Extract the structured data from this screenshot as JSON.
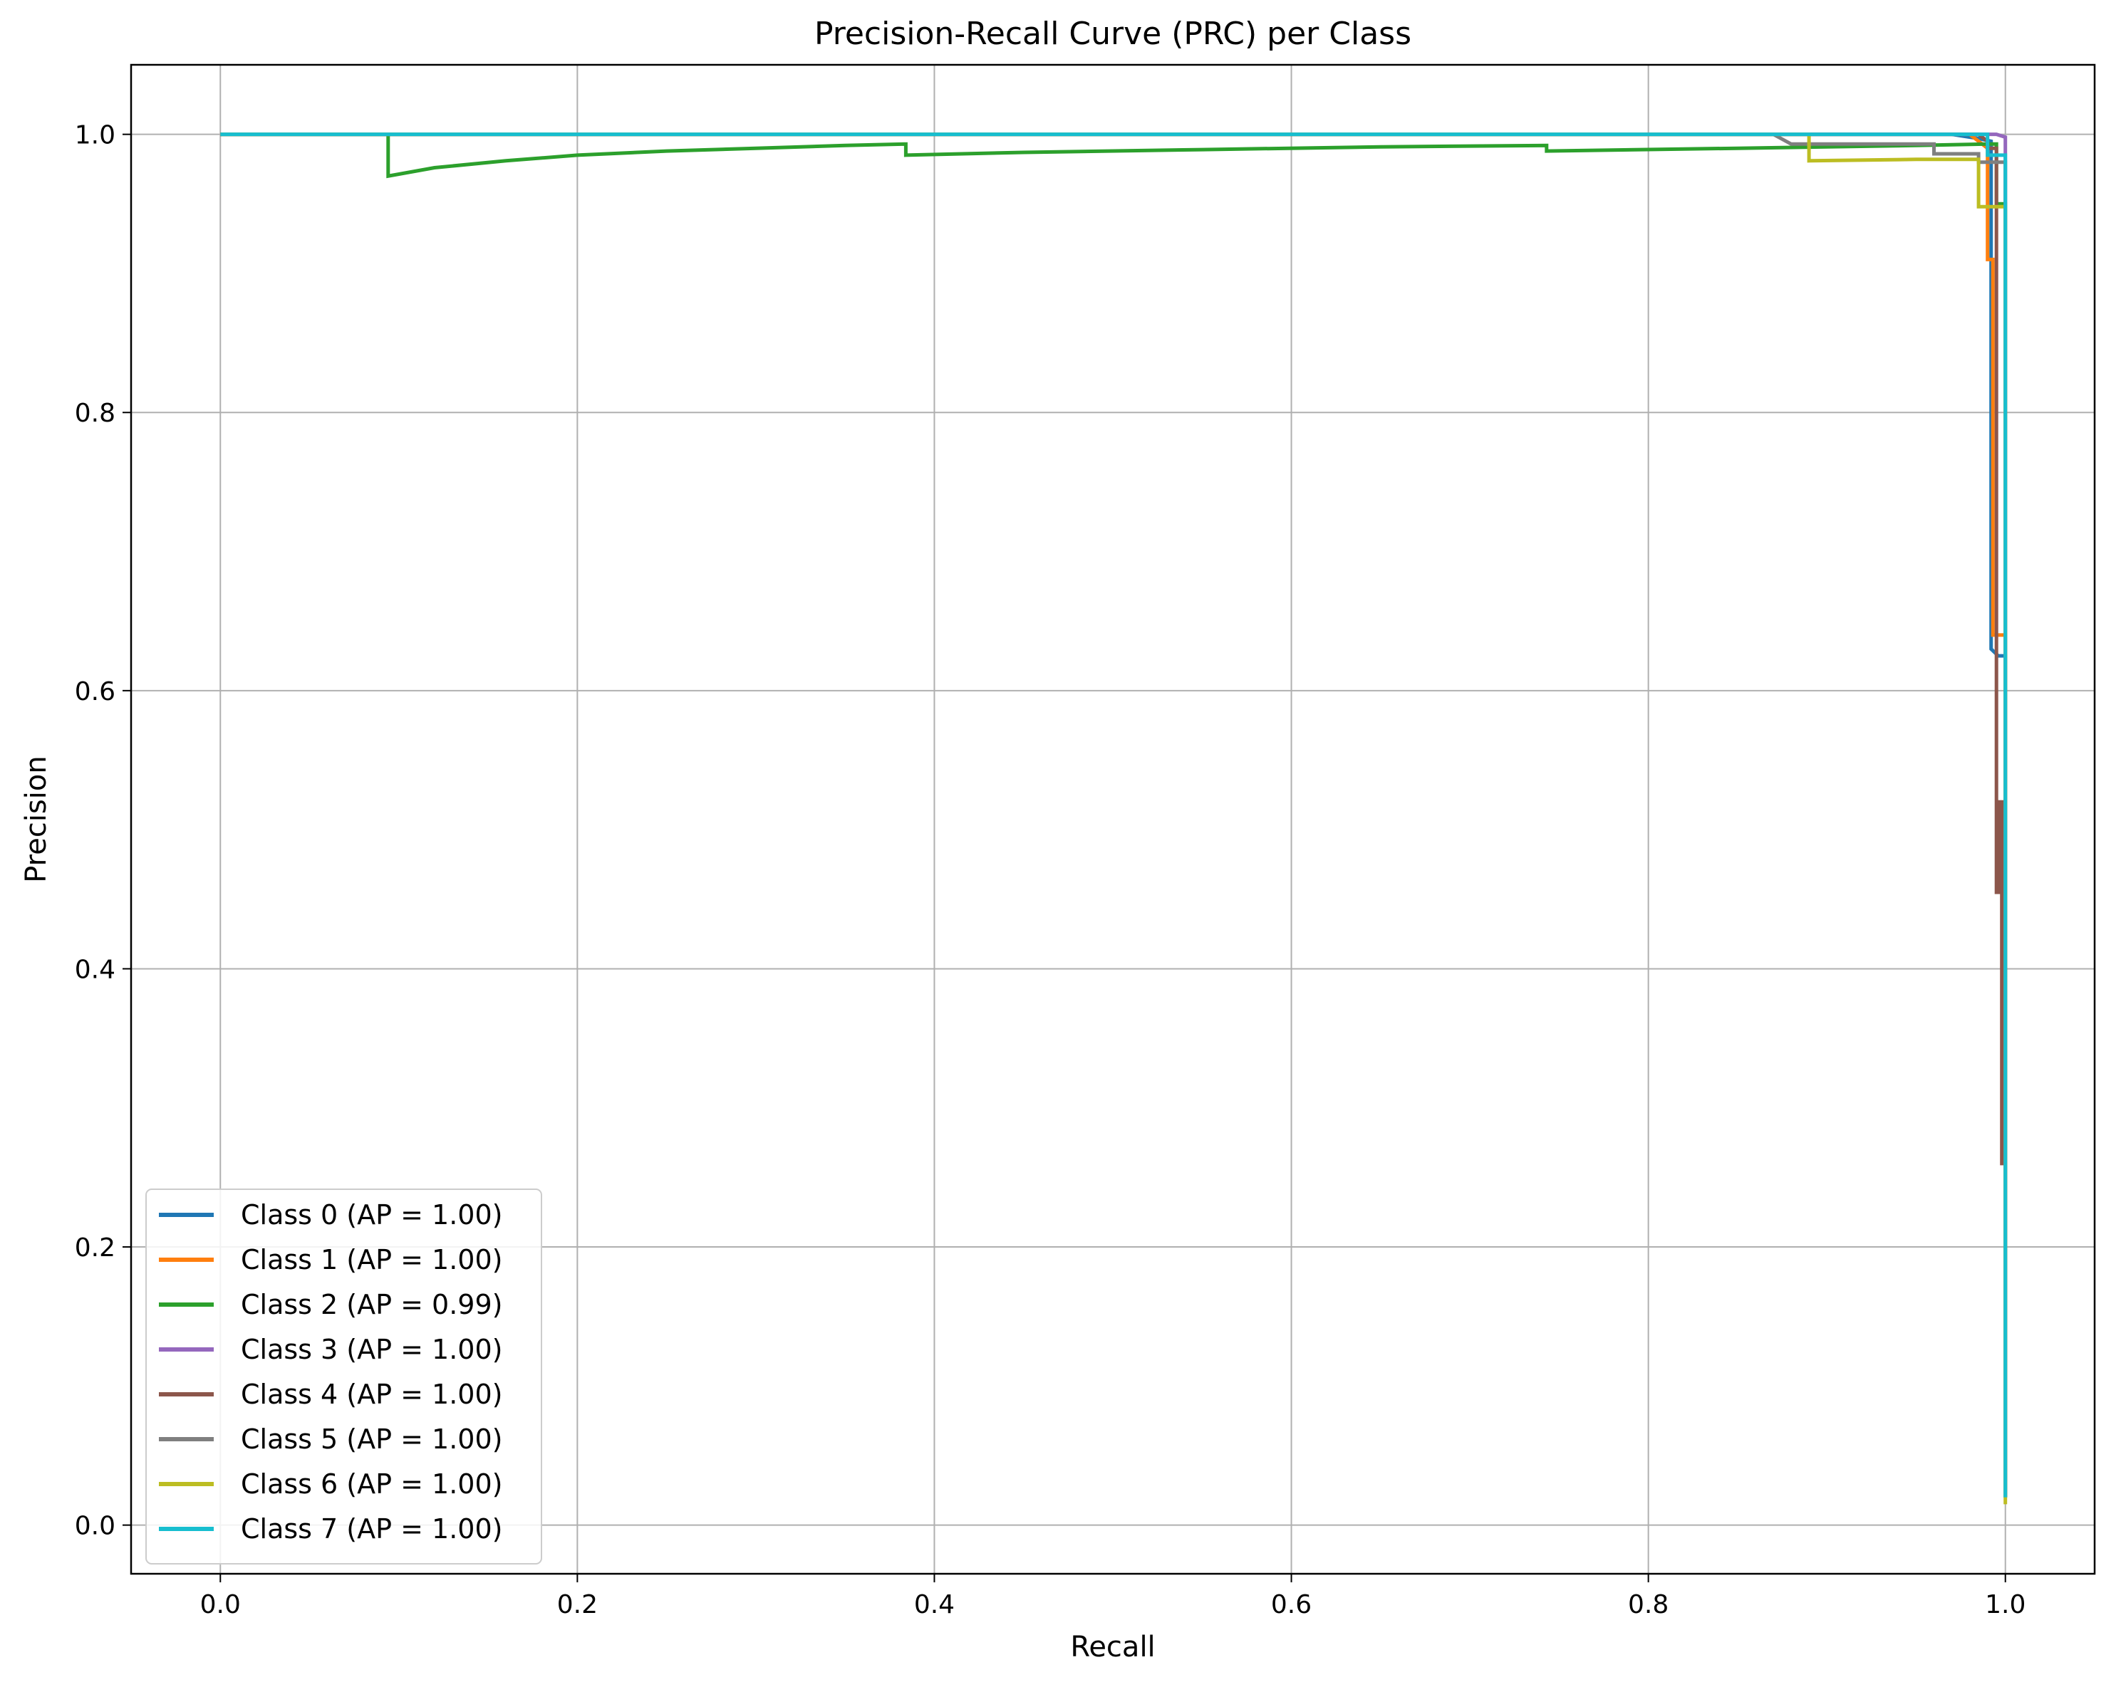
{
  "chart_data": {
    "type": "line",
    "title": "Precision-Recall Curve (PRC) per Class",
    "xlabel": "Recall",
    "ylabel": "Precision",
    "xlim": [
      -0.05,
      1.05
    ],
    "ylim": [
      -0.035,
      1.05
    ],
    "xticks": [
      0.0,
      0.2,
      0.4,
      0.6,
      0.8,
      1.0
    ],
    "xtick_labels": [
      "0.0",
      "0.2",
      "0.4",
      "0.6",
      "0.8",
      "1.0"
    ],
    "yticks": [
      0.0,
      0.2,
      0.4,
      0.6,
      0.8,
      1.0
    ],
    "ytick_labels": [
      "0.0",
      "0.2",
      "0.4",
      "0.6",
      "0.8",
      "1.0"
    ],
    "grid": true,
    "legend_position": "lower-left",
    "series": [
      {
        "name": "Class 0 (AP = 1.00)",
        "color": "#1f77b4",
        "x": [
          0.0,
          0.97,
          0.985,
          0.992,
          0.992,
          0.996,
          0.997,
          1.0,
          1.0
        ],
        "y": [
          1.0,
          1.0,
          0.997,
          0.995,
          0.63,
          0.625,
          0.625,
          0.625,
          0.02
        ]
      },
      {
        "name": "Class 1 (AP = 1.00)",
        "color": "#ff7f0e",
        "x": [
          0.0,
          0.98,
          0.99,
          0.99,
          0.993,
          0.993,
          1.0,
          1.0
        ],
        "y": [
          1.0,
          1.0,
          0.99,
          0.91,
          0.91,
          0.64,
          0.64,
          0.02
        ]
      },
      {
        "name": "Class 2 (AP = 0.99)",
        "color": "#2ca02c",
        "x": [
          0.0,
          0.094,
          0.094,
          0.12,
          0.16,
          0.2,
          0.25,
          0.3,
          0.35,
          0.384,
          0.384,
          0.45,
          0.55,
          0.65,
          0.743,
          0.743,
          0.85,
          0.95,
          0.99,
          0.995,
          0.995,
          1.0,
          1.0
        ],
        "y": [
          1.0,
          1.0,
          0.97,
          0.976,
          0.981,
          0.985,
          0.988,
          0.99,
          0.992,
          0.993,
          0.985,
          0.987,
          0.989,
          0.991,
          0.992,
          0.988,
          0.99,
          0.992,
          0.993,
          0.993,
          0.95,
          0.95,
          0.02
        ]
      },
      {
        "name": "Class 3 (AP = 1.00)",
        "color": "#9467bd",
        "x": [
          0.0,
          0.995,
          1.0,
          1.0
        ],
        "y": [
          1.0,
          1.0,
          0.998,
          0.02
        ]
      },
      {
        "name": "Class 4 (AP = 1.00)",
        "color": "#8c564b",
        "x": [
          0.0,
          0.985,
          0.99,
          0.99,
          0.995,
          0.995,
          0.997,
          0.997,
          0.998,
          0.998,
          1.0,
          1.0
        ],
        "y": [
          1.0,
          1.0,
          0.995,
          0.99,
          0.99,
          0.455,
          0.455,
          0.52,
          0.52,
          0.26,
          0.26,
          0.02
        ]
      },
      {
        "name": "Class 5 (AP = 1.00)",
        "color": "#7f7f7f",
        "x": [
          0.0,
          0.87,
          0.88,
          0.93,
          0.96,
          0.96,
          0.985,
          0.985,
          1.0,
          1.0
        ],
        "y": [
          1.0,
          1.0,
          0.993,
          0.993,
          0.993,
          0.986,
          0.986,
          0.98,
          0.98,
          0.02
        ]
      },
      {
        "name": "Class 6 (AP = 1.00)",
        "color": "#bcbd22",
        "x": [
          0.0,
          0.89,
          0.89,
          0.95,
          0.985,
          0.985,
          1.0,
          1.0
        ],
        "y": [
          1.0,
          1.0,
          0.981,
          0.982,
          0.982,
          0.948,
          0.948,
          0.015
        ]
      },
      {
        "name": "Class 7 (AP = 1.00)",
        "color": "#17becf",
        "x": [
          0.0,
          0.99,
          0.99,
          0.998,
          1.0,
          1.0
        ],
        "y": [
          1.0,
          1.0,
          0.985,
          0.985,
          0.985,
          0.02
        ]
      }
    ]
  }
}
